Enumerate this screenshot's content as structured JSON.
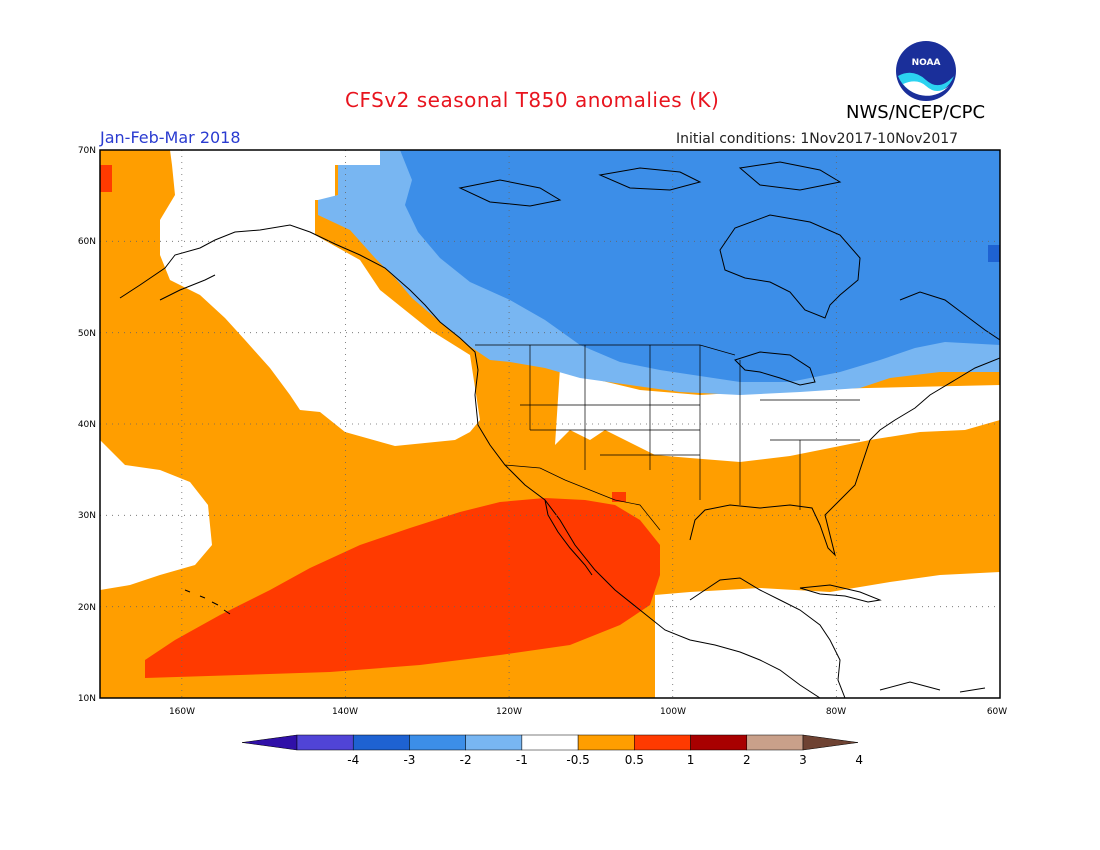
{
  "header": {
    "title": "CFSv2 seasonal T850 anomalies (K)",
    "agency": "NWS/NCEP/CPC",
    "period": "Jan-Feb-Mar 2018",
    "initial_conditions": "Initial conditions: 1Nov2017-10Nov2017",
    "logo_text": "NOAA"
  },
  "map": {
    "lon_range": [
      -170,
      -60
    ],
    "lat_range": [
      10,
      70
    ],
    "lat_labels": [
      "70N",
      "60N",
      "50N",
      "40N",
      "30N",
      "20N",
      "10N"
    ],
    "lon_labels": [
      "160W",
      "140W",
      "120W",
      "100W",
      "80W",
      "60W"
    ],
    "gridlines": "dotted"
  },
  "colorbar": {
    "labels": [
      "-4",
      "-3",
      "-2",
      "-1",
      "-0.5",
      "0.5",
      "1",
      "2",
      "3",
      "4"
    ],
    "colors": [
      "#3010a8",
      "#5044d6",
      "#1e62d2",
      "#3c8ee8",
      "#78b6f2",
      "#ffffff",
      "#ff9e00",
      "#ff3a00",
      "#a80000",
      "#c9a08a",
      "#6e4232"
    ]
  }
}
